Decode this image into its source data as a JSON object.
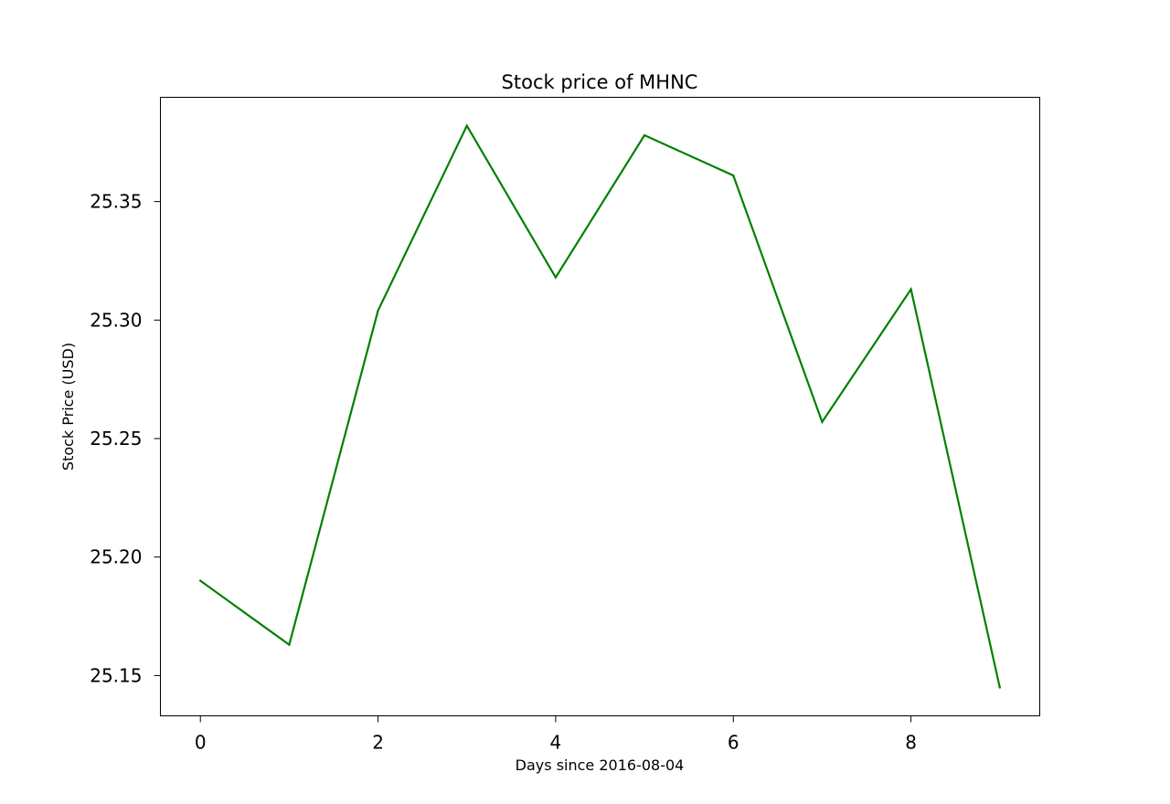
{
  "chart_data": {
    "type": "line",
    "title": "Stock price of MHNC",
    "xlabel": "Days since 2016-08-04",
    "ylabel": "Stock Price (USD)",
    "x": [
      0,
      1,
      2,
      3,
      4,
      5,
      6,
      7,
      8,
      9
    ],
    "series": [
      {
        "color": "#008000",
        "values": [
          25.19,
          25.163,
          25.304,
          25.382,
          25.318,
          25.378,
          25.361,
          25.257,
          25.313,
          25.145
        ]
      }
    ],
    "xlim": [
      -0.45,
      9.45
    ],
    "ylim": [
      25.133,
      25.394
    ],
    "xticks": [
      0,
      2,
      4,
      6,
      8
    ],
    "xtick_labels": [
      "0",
      "2",
      "4",
      "6",
      "8"
    ],
    "yticks": [
      25.15,
      25.2,
      25.25,
      25.3,
      25.35
    ],
    "ytick_labels": [
      "25.15",
      "25.20",
      "25.25",
      "25.30",
      "25.35"
    ],
    "grid": false,
    "legend": "none"
  }
}
